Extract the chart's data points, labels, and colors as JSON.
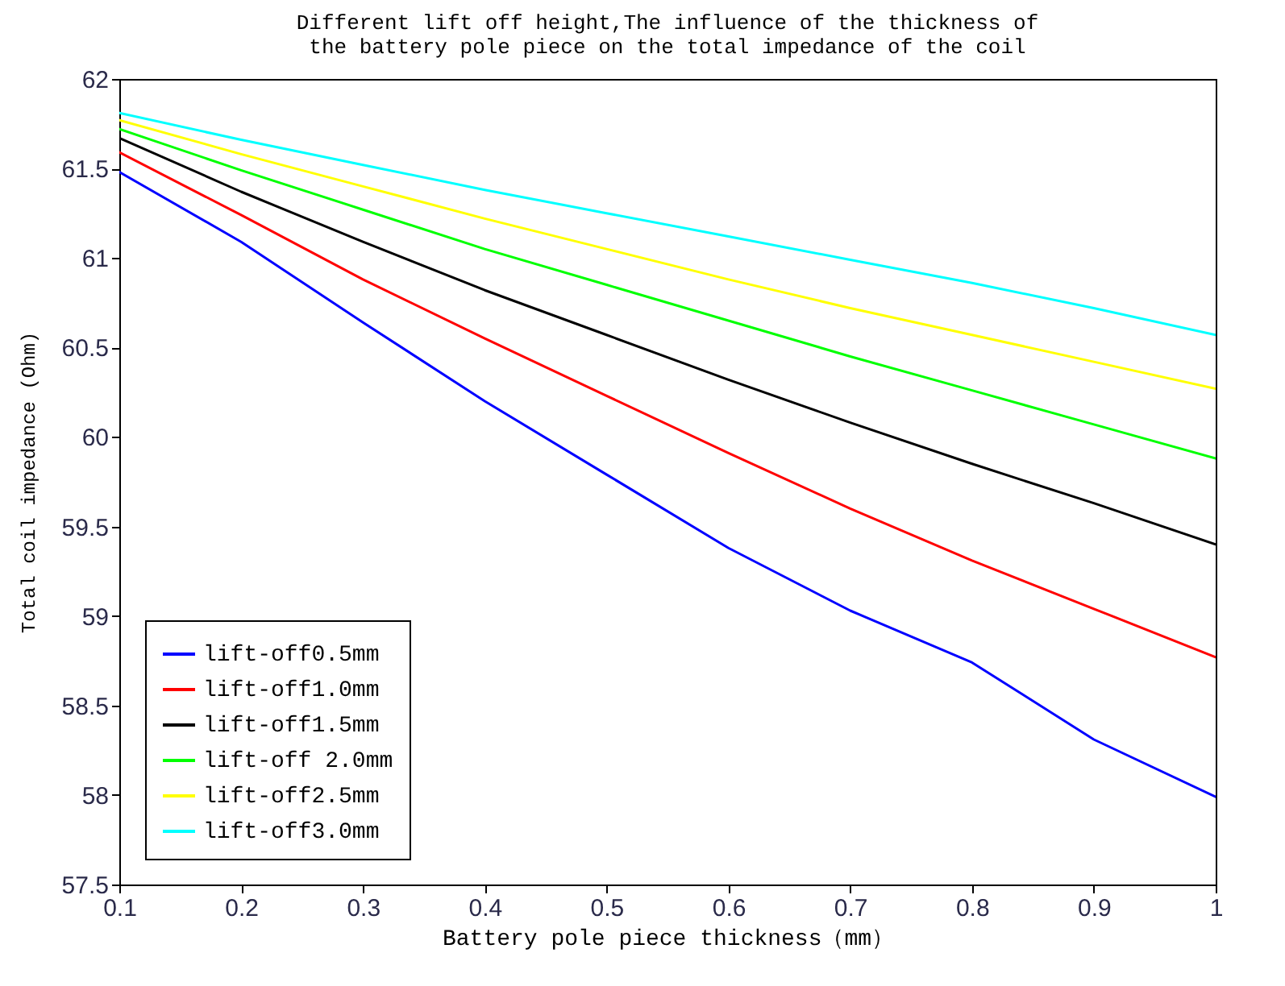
{
  "chart_data": {
    "type": "line",
    "title": [
      "Different lift off height,The influence of the thickness of",
      "the battery pole piece on the total impedance of the coil"
    ],
    "xlabel": "Battery pole piece thickness（mm）",
    "ylabel": "Total coil impedance (Ohm)",
    "x": [
      0.1,
      0.2,
      0.3,
      0.4,
      0.5,
      0.6,
      0.7,
      0.8,
      0.9,
      1
    ],
    "series": [
      {
        "name": "lift-off0.5mm",
        "color": "#0000ff",
        "values": [
          61.48,
          61.09,
          60.64,
          60.2,
          59.79,
          59.38,
          59.03,
          58.74,
          58.31,
          57.99
        ]
      },
      {
        "name": "lift-off1.0mm",
        "color": "#ff0000",
        "values": [
          61.59,
          61.24,
          60.88,
          60.55,
          60.23,
          59.91,
          59.6,
          59.31,
          59.04,
          58.77
        ]
      },
      {
        "name": "lift-off1.5mm",
        "color": "#000000",
        "values": [
          61.67,
          61.37,
          61.09,
          60.82,
          60.57,
          60.32,
          60.08,
          59.85,
          59.63,
          59.4
        ]
      },
      {
        "name": "lift-off 2.0mm",
        "color": "#00ff00",
        "values": [
          61.72,
          61.49,
          61.27,
          61.05,
          60.85,
          60.65,
          60.45,
          60.26,
          60.07,
          59.88
        ]
      },
      {
        "name": "lift-off2.5mm",
        "color": "#ffff00",
        "values": [
          61.77,
          61.58,
          61.4,
          61.22,
          61.05,
          60.88,
          60.72,
          60.57,
          60.42,
          60.27
        ]
      },
      {
        "name": "lift-off3.0mm",
        "color": "#00ffff",
        "values": [
          61.81,
          61.66,
          61.52,
          61.38,
          61.25,
          61.12,
          60.99,
          60.86,
          60.72,
          60.57
        ]
      }
    ],
    "xlim": [
      0.1,
      1
    ],
    "xticks": [
      0.1,
      0.2,
      0.3,
      0.4,
      0.5,
      0.6,
      0.7,
      0.8,
      0.9,
      1
    ],
    "ylim": [
      57.5,
      62
    ],
    "yticks": [
      57.5,
      58,
      58.5,
      59,
      59.5,
      60,
      60.5,
      61,
      61.5,
      62
    ],
    "legend": "bottom left",
    "grid": false,
    "marker": "none",
    "line_style": "solid"
  }
}
